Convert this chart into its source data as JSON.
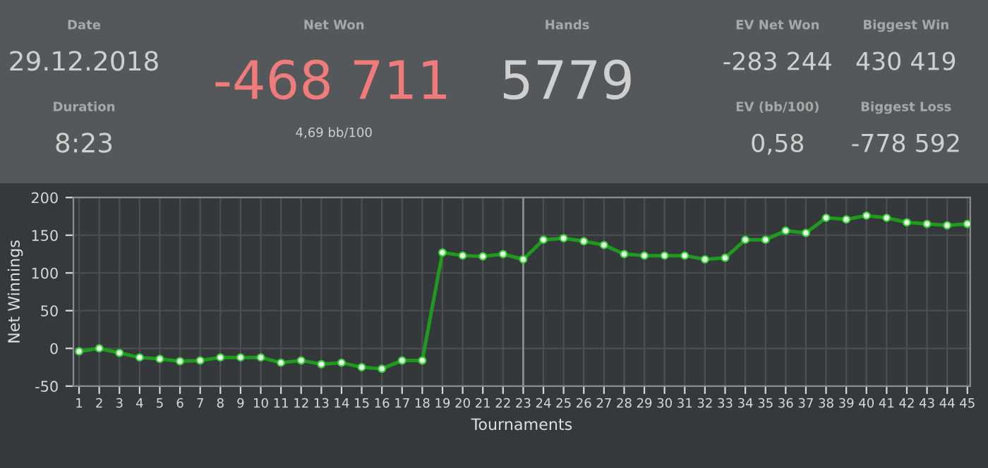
{
  "chart_data": [
    {
      "type": "other",
      "annotations": [
        "Date",
        "29.12.2018",
        "Duration",
        "8:23",
        "Net Won",
        "-468 711",
        "4,69 bb/100",
        "Hands",
        "5779",
        "EV Net Won",
        "-283 244",
        "Biggest Win",
        "430 419",
        "EV (bb/100)",
        "0,58",
        "Biggest Loss",
        "-778 592"
      ]
    },
    {
      "type": "line",
      "xlabel": "Tournaments",
      "ylabel": "Net Winnings",
      "x": [
        1,
        2,
        3,
        4,
        5,
        6,
        7,
        8,
        9,
        10,
        11,
        12,
        13,
        14,
        15,
        16,
        17,
        18,
        19,
        20,
        21,
        22,
        23,
        24,
        25,
        26,
        27,
        28,
        29,
        30,
        31,
        32,
        33,
        34,
        35,
        36,
        37,
        38,
        39,
        40,
        41,
        42,
        43,
        44,
        45
      ],
      "series": [
        {
          "color": "#1f9a1f",
          "values": [
            -4,
            0,
            -6,
            -12,
            -14,
            -17,
            -16,
            -12,
            -12,
            -12,
            -19,
            -16,
            -21,
            -19,
            -25,
            -27,
            -16,
            -16,
            127,
            123,
            122,
            125,
            118,
            144,
            146,
            142,
            137,
            125,
            123,
            123,
            123,
            118,
            120,
            144,
            144,
            156,
            153,
            173,
            171,
            176,
            173,
            167,
            165,
            163,
            165
          ]
        }
      ],
      "xlim": [
        0.72,
        45.14
      ],
      "xticks": [
        1,
        2,
        3,
        4,
        5,
        6,
        7,
        8,
        9,
        10,
        11,
        12,
        13,
        14,
        15,
        16,
        17,
        18,
        19,
        20,
        21,
        22,
        23,
        24,
        25,
        26,
        27,
        28,
        29,
        30,
        31,
        32,
        33,
        34,
        35,
        36,
        37,
        38,
        39,
        40,
        41,
        42,
        43,
        44,
        45
      ],
      "ylim": [
        -50,
        200
      ],
      "yticks": [
        -50,
        0,
        50,
        100,
        150,
        200
      ],
      "ref_lines": [
        {
          "axis": "x",
          "value": 23,
          "color": "#8a8d90"
        }
      ],
      "grid": true,
      "marker": "circle",
      "line_style": "solid"
    }
  ]
}
